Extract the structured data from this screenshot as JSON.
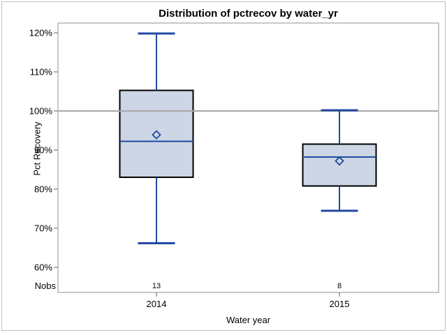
{
  "chart_data": {
    "type": "boxplot",
    "title": "Distribution of pctrecov by water_yr",
    "xlabel": "Water year",
    "ylabel": "Pct Recovery",
    "ylim": [
      60,
      120
    ],
    "yticks": [
      120,
      110,
      100,
      90,
      80,
      70,
      60
    ],
    "ytick_suffix": "%",
    "reference_line": 100,
    "grid": false,
    "legend": "none",
    "nobs_row_label": "Nobs",
    "categories": [
      "2014",
      "2015"
    ],
    "series": [
      {
        "category": "2014",
        "nobs": 13,
        "whisker_low": 66.2,
        "q1": 83.0,
        "median": 92.2,
        "mean": 93.9,
        "q3": 105.3,
        "whisker_high": 119.8
      },
      {
        "category": "2015",
        "nobs": 8,
        "whisker_low": 74.5,
        "q1": 80.8,
        "median": 88.2,
        "mean": 87.2,
        "q3": 91.5,
        "whisker_high": 100.2
      }
    ],
    "colors": {
      "box_fill": "#ccd6e4",
      "box_border": "#000000",
      "line_blue": "#2149a0",
      "reference_line": "#a8a8a8",
      "axis_line": "#8c9194",
      "tick": "#666666",
      "text": "#000000",
      "image_border": "#bdc1c3"
    }
  }
}
